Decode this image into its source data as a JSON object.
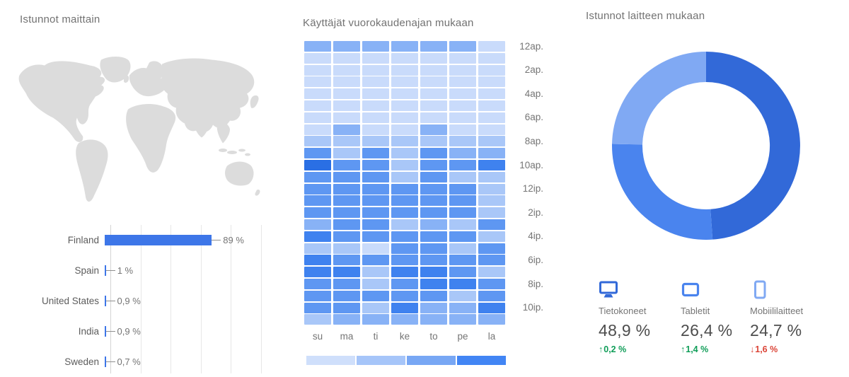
{
  "panels": {
    "countries": {
      "title": "Istunnot maittain"
    },
    "heatmap": {
      "title": "Käyttäjät vuorokaudenajan mukaan"
    },
    "devices": {
      "title": "Istunnot laitteen mukaan"
    }
  },
  "chart_data": [
    {
      "id": "sessions_by_country",
      "type": "bar",
      "orientation": "horizontal",
      "title": "Istunnot maittain",
      "categories": [
        "Finland",
        "Spain",
        "United States",
        "India",
        "Sweden"
      ],
      "values": [
        89,
        1,
        0.9,
        0.9,
        0.7
      ],
      "value_labels": [
        "89 %",
        "1 %",
        "0,9 %",
        "0,9 %",
        "0,7 %"
      ],
      "xlim": [
        0,
        125
      ],
      "gridlines_pct": [
        0,
        25,
        50,
        75,
        100,
        125
      ],
      "bar_color": "#3d76e8",
      "map_note": "world map above chart, all countries light gray"
    },
    {
      "id": "users_by_time_of_day",
      "type": "heatmap",
      "title": "Käyttäjät vuorokaudenajan mukaan",
      "x_labels": [
        "su",
        "ma",
        "ti",
        "ke",
        "to",
        "pe",
        "la"
      ],
      "y_tick_labels": [
        "12ap.",
        "2ap.",
        "4ap.",
        "6ap.",
        "8ap.",
        "10ap.",
        "12ip.",
        "2ip.",
        "4ip.",
        "6ip.",
        "8ip.",
        "10ip."
      ],
      "rows": 24,
      "palette": [
        "#e3ecfd",
        "#c9dbfb",
        "#a9c7f8",
        "#88b2f6",
        "#5e97f2",
        "#3f82ef",
        "#2a6fe4"
      ],
      "legend_colors": [
        "#cfdffb",
        "#a6c5f9",
        "#78a7f4",
        "#4285f4"
      ],
      "matrix": [
        [
          3,
          3,
          3,
          3,
          3,
          3,
          1
        ],
        [
          1,
          1,
          1,
          1,
          1,
          1,
          1
        ],
        [
          1,
          1,
          1,
          1,
          1,
          1,
          1
        ],
        [
          1,
          1,
          1,
          1,
          1,
          1,
          1
        ],
        [
          1,
          1,
          1,
          1,
          1,
          1,
          1
        ],
        [
          1,
          1,
          1,
          1,
          1,
          1,
          1
        ],
        [
          1,
          1,
          1,
          1,
          1,
          1,
          1
        ],
        [
          1,
          3,
          1,
          1,
          3,
          1,
          1
        ],
        [
          2,
          2,
          2,
          2,
          2,
          2,
          2
        ],
        [
          4,
          2,
          4,
          2,
          4,
          3,
          3
        ],
        [
          6,
          4,
          4,
          2,
          4,
          4,
          5
        ],
        [
          4,
          4,
          4,
          2,
          4,
          2,
          2
        ],
        [
          4,
          4,
          4,
          4,
          4,
          4,
          2
        ],
        [
          4,
          4,
          4,
          4,
          4,
          4,
          2
        ],
        [
          4,
          4,
          4,
          4,
          4,
          4,
          2
        ],
        [
          3,
          4,
          4,
          2,
          3,
          2,
          4
        ],
        [
          5,
          4,
          4,
          4,
          4,
          4,
          2
        ],
        [
          2,
          2,
          1,
          4,
          4,
          2,
          4
        ],
        [
          5,
          4,
          4,
          4,
          4,
          4,
          4
        ],
        [
          5,
          5,
          2,
          5,
          5,
          4,
          2
        ],
        [
          4,
          4,
          2,
          4,
          5,
          5,
          4
        ],
        [
          4,
          4,
          4,
          4,
          4,
          2,
          4
        ],
        [
          4,
          4,
          2,
          5,
          3,
          3,
          5
        ],
        [
          2,
          3,
          3,
          3,
          3,
          3,
          3
        ]
      ]
    },
    {
      "id": "sessions_by_device",
      "type": "pie",
      "donut": true,
      "title": "Istunnot laitteen mukaan",
      "slices": [
        {
          "label": "Tietokoneet",
          "value": 48.9,
          "display": "48,9 %",
          "delta": "0,2 %",
          "delta_dir": "up",
          "color": "#3269d8",
          "icon": "desktop-icon"
        },
        {
          "label": "Tabletit",
          "value": 26.4,
          "display": "26,4 %",
          "delta": "1,4 %",
          "delta_dir": "up",
          "color": "#4a84ee",
          "icon": "tablet-icon"
        },
        {
          "label": "Mobiililaitteet",
          "value": 24.7,
          "display": "24,7 %",
          "delta": "1,6 %",
          "delta_dir": "down",
          "color": "#80a9f3",
          "icon": "mobile-icon"
        }
      ],
      "delta_up_color": "#0f9d58",
      "delta_down_color": "#db4437",
      "start_angle_deg": 0,
      "direction": "clockwise"
    }
  ]
}
